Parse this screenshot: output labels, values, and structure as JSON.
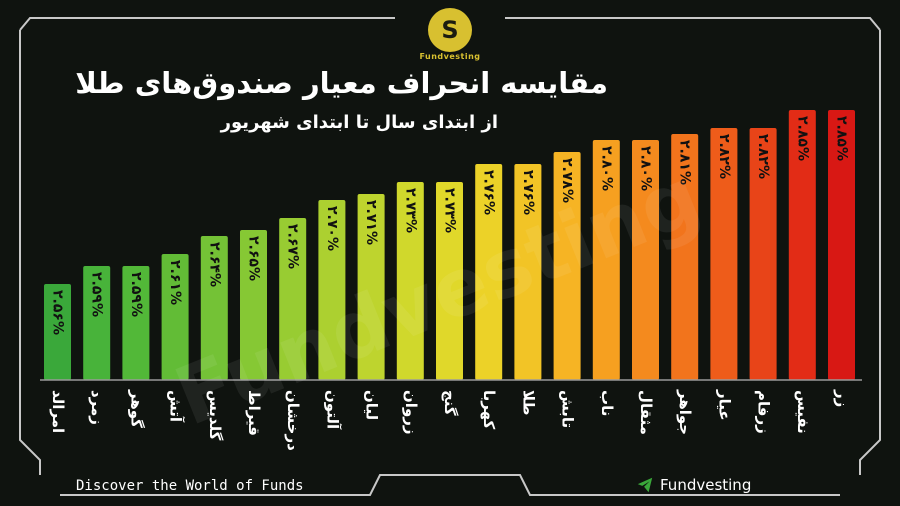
{
  "brand": {
    "logo_glyph": "S",
    "logo_text": "Fundvesting",
    "watermark": "Fundvesting",
    "footer_left": "Discover the World of Funds",
    "footer_right": "Fundvesting"
  },
  "chart_data": {
    "type": "bar",
    "title": "مقایسه انحراف معیار صندوق‌های طلا",
    "subtitle": "از ابتدای سال تا ابتدای شهریور",
    "xlabel": "",
    "ylabel": "",
    "ylim": [
      2.4,
      2.9
    ],
    "grid": false,
    "categories": [
      "امرالد",
      "زمرد",
      "گوهر",
      "آتش",
      "گلدیس",
      "قیراط",
      "درخشان",
      "آلتون",
      "لیان",
      "زروان",
      "گنج",
      "کهربا",
      "طلا",
      "تابش",
      "ناب",
      "مثقال",
      "جواهر",
      "عیار",
      "زرفام",
      "نفیس",
      "زر"
    ],
    "values": [
      2.56,
      2.59,
      2.59,
      2.61,
      2.64,
      2.65,
      2.67,
      2.7,
      2.71,
      2.73,
      2.73,
      2.76,
      2.76,
      2.78,
      2.8,
      2.8,
      2.81,
      2.82,
      2.82,
      2.85,
      2.85
    ],
    "value_labels": [
      "۲.۵۶%",
      "۲.۵۹%",
      "۲.۵۹%",
      "۲.۶۱%",
      "۲.۶۴%",
      "۲.۶۵%",
      "۲.۶۷%",
      "۲.۷۰%",
      "۲.۷۱%",
      "۲.۷۳%",
      "۲.۷۳%",
      "۲.۷۶%",
      "۲.۷۶%",
      "۲.۷۸%",
      "۲.۸۰%",
      "۲.۸۰%",
      "۲.۸۱%",
      "۲.۸۲%",
      "۲.۸۲%",
      "۲.۸۵%",
      "۲.۸۵%"
    ],
    "colors": [
      "#3aa83a",
      "#48b33a",
      "#52b838",
      "#62bc36",
      "#74c236",
      "#86c834",
      "#98cc32",
      "#acd030",
      "#bed42e",
      "#d0d82c",
      "#e0d82a",
      "#ecd228",
      "#f2c426",
      "#f6b424",
      "#f6a020",
      "#f48a1e",
      "#f2741c",
      "#ee5c1a",
      "#e84418",
      "#e22c16",
      "#d81814"
    ]
  }
}
